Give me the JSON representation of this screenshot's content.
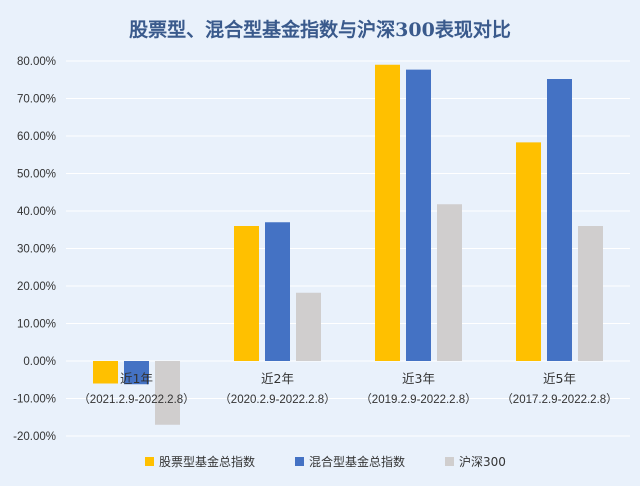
{
  "chart_data": {
    "type": "bar",
    "title": "股票型、混合型基金指数与沪深300表现对比",
    "categories": [
      "近1年",
      "近2年",
      "近3年",
      "近5年"
    ],
    "category_periods": [
      "（2021.2.9-2022.2.8）",
      "（2020.2.9-2022.2.8）",
      "（2019.2.9-2022.2.8）",
      "（2017.2.9-2022.2.8）"
    ],
    "series": [
      {
        "name": "股票型基金总指数",
        "color": "#ffc000",
        "values": [
          -6.0,
          36.0,
          79.0,
          58.3
        ]
      },
      {
        "name": "混合型基金总指数",
        "color": "#4472c4",
        "values": [
          -6.2,
          37.0,
          77.7,
          75.2
        ]
      },
      {
        "name": "沪深300",
        "color": "#d0cece",
        "values": [
          -17.0,
          18.2,
          41.8,
          36.0
        ]
      }
    ],
    "ylim": [
      -20,
      80
    ],
    "yticks": [
      -20,
      -10,
      0,
      10,
      20,
      30,
      40,
      50,
      60,
      70,
      80
    ],
    "ytick_labels": [
      "-20.00%",
      "-10.00%",
      "0.00%",
      "10.00%",
      "20.00%",
      "30.00%",
      "40.00%",
      "50.00%",
      "60.00%",
      "70.00%",
      "80.00%"
    ],
    "grid": true,
    "legend_position": "bottom",
    "xlabel": "",
    "ylabel": ""
  }
}
